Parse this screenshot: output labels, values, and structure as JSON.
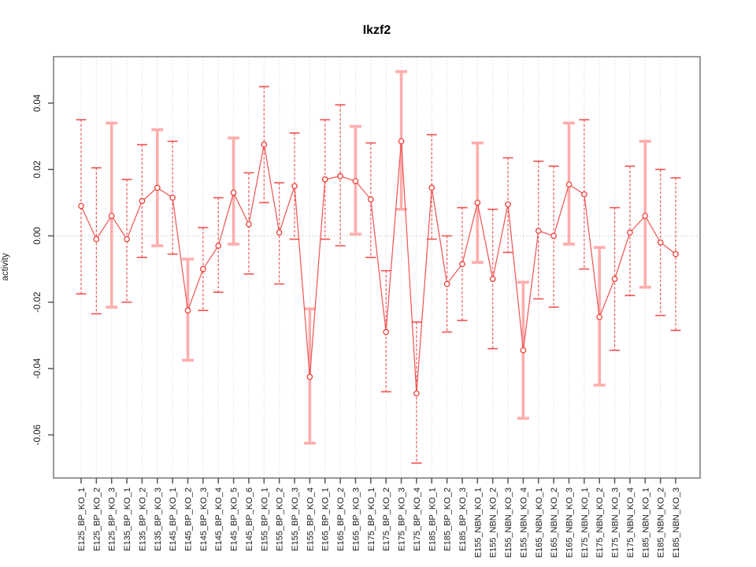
{
  "title": "Ikzf2",
  "chart_data": {
    "type": "line",
    "title": "Ikzf2",
    "xlabel": "",
    "ylabel": "activity",
    "ylim": [
      -0.073,
      0.054
    ],
    "yticks": [
      0.04,
      0.02,
      0.0,
      -0.02,
      -0.04,
      -0.06
    ],
    "ytick_labels": [
      "0.04",
      "0.02",
      "0.00",
      "-0.02",
      "-0.04",
      "-0.06"
    ],
    "grid": "vertical-dashed-light",
    "zero_line": true,
    "legend": "none",
    "colors": {
      "point": "#ee4037",
      "line": "#f15252",
      "errorbar_thin": "#f15252",
      "errorbar_thick": "#ffadad",
      "frame": "#999999",
      "grid": "#dcdcdc",
      "zero_line": "#c9c9c9",
      "tick": "#555555",
      "text": "#1a1a1a"
    },
    "categories": [
      "E125_BP_KO_1",
      "E125_BP_KO_2",
      "E125_BP_KO_3",
      "E135_BP_KO_1",
      "E135_BP_KO_2",
      "E135_BP_KO_3",
      "E145_BP_KO_1",
      "E145_BP_KO_2",
      "E145_BP_KO_3",
      "E145_BP_KO_4",
      "E145_BP_KO_5",
      "E145_BP_KO_6",
      "E155_BP_KO_1",
      "E155_BP_KO_2",
      "E155_BP_KO_3",
      "E155_BP_KO_4",
      "E165_BP_KO_1",
      "E165_BP_KO_2",
      "E165_BP_KO_3",
      "E175_BP_KO_1",
      "E175_BP_KO_2",
      "E175_BP_KO_3",
      "E175_BP_KO_4",
      "E185_BP_KO_1",
      "E185_BP_KO_2",
      "E185_BP_KO_3",
      "E155_NBN_KO_1",
      "E155_NBN_KO_2",
      "E155_NBN_KO_3",
      "E155_NBN_KO_4",
      "E165_NBN_KO_1",
      "E165_NBN_KO_2",
      "E165_NBN_KO_3",
      "E175_NBN_KO_1",
      "E175_NBN_KO_2",
      "E175_NBN_KO_3",
      "E175_NBN_KO_4",
      "E185_NBN_KO_1",
      "E185_NBN_KO_2",
      "E185_NBN_KO_3"
    ],
    "series": [
      {
        "name": "activity",
        "values": [
          0.009,
          -0.001,
          0.006,
          -0.001,
          0.0105,
          0.0145,
          0.0115,
          -0.0225,
          -0.01,
          -0.003,
          0.013,
          0.0035,
          0.0275,
          0.001,
          0.015,
          -0.0425,
          0.017,
          0.018,
          0.0165,
          0.011,
          -0.029,
          0.0285,
          -0.0475,
          0.0145,
          -0.0145,
          -0.0085,
          0.01,
          -0.013,
          0.0095,
          -0.0345,
          0.0015,
          0.0,
          0.0155,
          0.0125,
          -0.0245,
          -0.013,
          0.001,
          0.006,
          -0.002,
          -0.0055
        ],
        "error_high": [
          0.035,
          0.0205,
          0.034,
          0.017,
          0.0275,
          0.032,
          0.0285,
          -0.007,
          0.0025,
          0.0115,
          0.0295,
          0.019,
          0.045,
          0.016,
          0.031,
          -0.022,
          0.035,
          0.0395,
          0.033,
          0.028,
          -0.0105,
          0.0495,
          -0.026,
          0.0305,
          0.0,
          0.0085,
          0.028,
          0.008,
          0.0235,
          -0.014,
          0.0225,
          0.021,
          0.034,
          0.035,
          -0.0035,
          0.0085,
          0.021,
          0.0285,
          0.02,
          0.0175
        ],
        "error_low": [
          -0.0175,
          -0.0235,
          -0.0215,
          -0.02,
          -0.0065,
          -0.003,
          -0.0055,
          -0.0375,
          -0.0225,
          -0.017,
          -0.0025,
          -0.0115,
          0.01,
          -0.0145,
          -0.001,
          -0.0625,
          -0.001,
          -0.003,
          0.0005,
          -0.0065,
          -0.047,
          0.008,
          -0.0685,
          -0.001,
          -0.029,
          -0.0255,
          -0.008,
          -0.034,
          -0.005,
          -0.055,
          -0.019,
          -0.0215,
          -0.0025,
          -0.01,
          -0.045,
          -0.0345,
          -0.018,
          -0.0155,
          -0.024,
          -0.0285
        ],
        "bar_style": [
          "thin",
          "thin",
          "thick",
          "thin",
          "thin",
          "thick",
          "thin",
          "thick",
          "thin",
          "thin",
          "thick",
          "thin",
          "thin",
          "thin",
          "thin",
          "thick",
          "thin",
          "thin",
          "thick",
          "thin",
          "thin",
          "thick",
          "thin",
          "thin",
          "thin",
          "thin",
          "thick",
          "thin",
          "thin",
          "thick",
          "thin",
          "thin",
          "thick",
          "thin",
          "thick",
          "thin",
          "thin",
          "thick",
          "thin",
          "thin"
        ]
      }
    ]
  }
}
